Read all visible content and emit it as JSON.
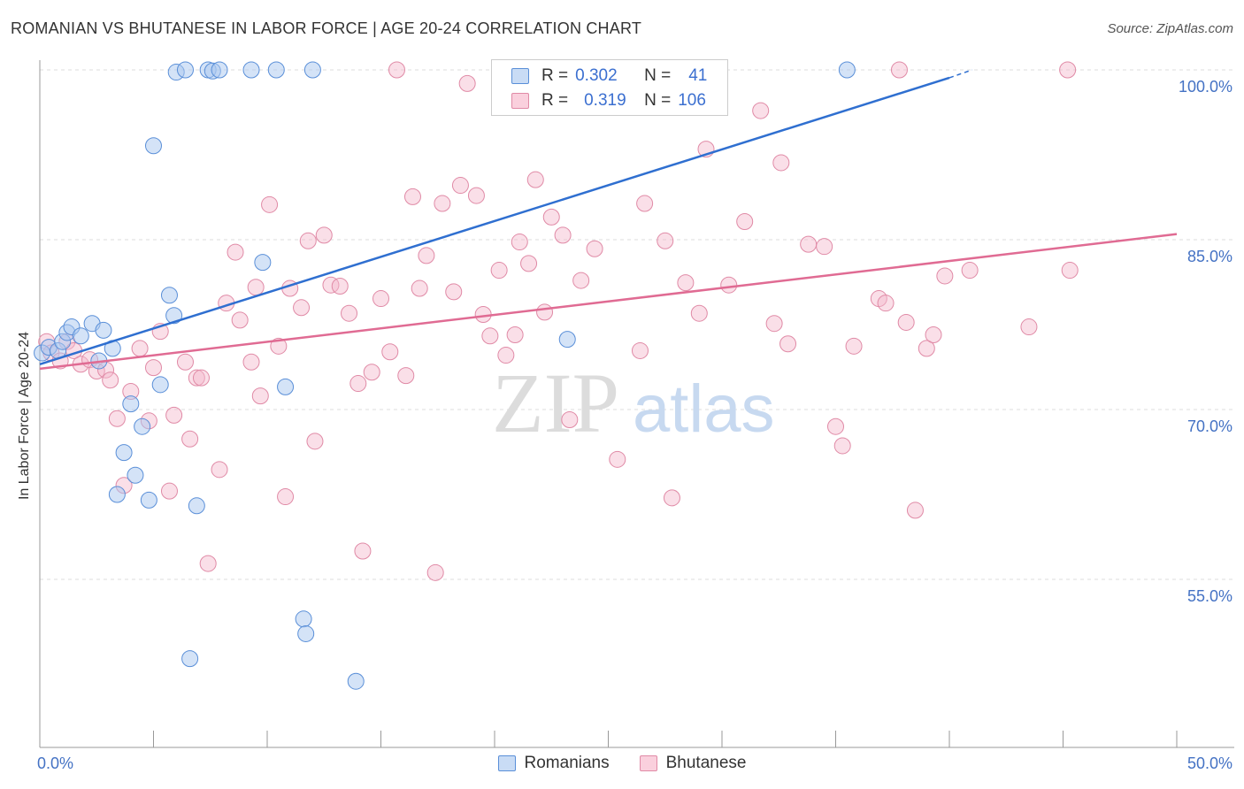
{
  "header": {
    "title": "ROMANIAN VS BHUTANESE IN LABOR FORCE | AGE 20-24 CORRELATION CHART",
    "source": "Source: ZipAtlas.com"
  },
  "legend": {
    "romanians": {
      "r_label": "R =",
      "r_value": "0.302",
      "n_label": "N =",
      "n_value": "41"
    },
    "bhutanese": {
      "r_label": "R =",
      "r_value": "0.319",
      "n_label": "N =",
      "n_value": "106"
    }
  },
  "watermark": {
    "zip": "ZIP",
    "atlas": "atlas"
  },
  "colors": {
    "romanians_fill": "#a9c8f0",
    "romanians_stroke": "#5a8fd8",
    "romanians_line": "#2f6fd0",
    "bhutanese_fill": "#f5b8cb",
    "bhutanese_stroke": "#e08aa6",
    "bhutanese_line": "#e06b93",
    "axis_label": "#4472c4"
  },
  "chart_data": {
    "type": "scatter",
    "title": "ROMANIAN VS BHUTANESE IN LABOR FORCE | AGE 20-24 CORRELATION CHART",
    "xlabel": "",
    "ylabel": "In Labor Force | Age 20-24",
    "xlim": [
      0,
      50
    ],
    "ylim": [
      39,
      103
    ],
    "x_tick_labels": [
      "0.0%",
      "50.0%"
    ],
    "y_ticks": [
      55,
      70,
      85,
      100
    ],
    "y_tick_labels": [
      "55.0%",
      "70.0%",
      "85.0%",
      "100.0%"
    ],
    "grid": true,
    "legend_position": "bottom-center",
    "series": [
      {
        "name": "Romanians",
        "trend": {
          "x": [
            0,
            40
          ],
          "y": [
            74.0,
            99.3
          ]
        },
        "points": [
          [
            0.1,
            75.0
          ],
          [
            0.4,
            75.5
          ],
          [
            0.8,
            75.2
          ],
          [
            1.0,
            76.0
          ],
          [
            1.2,
            76.8
          ],
          [
            1.4,
            77.3
          ],
          [
            1.8,
            76.5
          ],
          [
            2.3,
            77.6
          ],
          [
            2.8,
            77.0
          ],
          [
            2.6,
            74.3
          ],
          [
            3.2,
            75.4
          ],
          [
            3.4,
            62.5
          ],
          [
            3.7,
            66.2
          ],
          [
            4.0,
            70.5
          ],
          [
            4.2,
            64.2
          ],
          [
            4.5,
            68.5
          ],
          [
            4.8,
            62.0
          ],
          [
            5.0,
            93.3
          ],
          [
            5.3,
            72.2
          ],
          [
            5.7,
            80.1
          ],
          [
            5.9,
            78.3
          ],
          [
            6.0,
            99.8
          ],
          [
            6.4,
            100.0
          ],
          [
            6.6,
            48.0
          ],
          [
            6.9,
            61.5
          ],
          [
            7.4,
            100.0
          ],
          [
            7.6,
            99.9
          ],
          [
            7.9,
            100.0
          ],
          [
            9.3,
            100.0
          ],
          [
            9.8,
            83.0
          ],
          [
            10.4,
            100.0
          ],
          [
            10.8,
            72.0
          ],
          [
            11.6,
            51.5
          ],
          [
            11.7,
            50.2
          ],
          [
            12.0,
            100.0
          ],
          [
            13.9,
            46.0
          ],
          [
            23.2,
            76.2
          ],
          [
            27.9,
            100.0
          ],
          [
            35.5,
            100.0
          ]
        ]
      },
      {
        "name": "Bhutanese",
        "trend": {
          "x": [
            0,
            50
          ],
          "y": [
            73.6,
            85.5
          ]
        },
        "points": [
          [
            0.3,
            76.0
          ],
          [
            0.5,
            75.0
          ],
          [
            0.9,
            74.3
          ],
          [
            1.2,
            76.0
          ],
          [
            1.5,
            75.2
          ],
          [
            1.8,
            74.0
          ],
          [
            2.2,
            74.4
          ],
          [
            2.5,
            73.4
          ],
          [
            2.9,
            73.5
          ],
          [
            3.1,
            72.6
          ],
          [
            3.4,
            69.2
          ],
          [
            3.7,
            63.3
          ],
          [
            4.0,
            71.6
          ],
          [
            4.4,
            75.4
          ],
          [
            4.8,
            69.0
          ],
          [
            5.0,
            73.7
          ],
          [
            5.3,
            76.9
          ],
          [
            5.7,
            62.8
          ],
          [
            5.9,
            69.5
          ],
          [
            6.4,
            74.2
          ],
          [
            6.6,
            67.4
          ],
          [
            6.9,
            72.8
          ],
          [
            7.1,
            72.8
          ],
          [
            7.4,
            56.4
          ],
          [
            7.9,
            64.7
          ],
          [
            8.2,
            79.4
          ],
          [
            8.6,
            83.9
          ],
          [
            8.8,
            77.9
          ],
          [
            9.3,
            74.2
          ],
          [
            9.5,
            80.8
          ],
          [
            9.7,
            71.2
          ],
          [
            10.1,
            88.1
          ],
          [
            10.5,
            75.6
          ],
          [
            10.8,
            62.3
          ],
          [
            11.0,
            80.7
          ],
          [
            11.5,
            79.0
          ],
          [
            11.8,
            84.9
          ],
          [
            12.1,
            67.2
          ],
          [
            12.5,
            85.4
          ],
          [
            12.8,
            81.0
          ],
          [
            13.2,
            80.9
          ],
          [
            13.6,
            78.5
          ],
          [
            14.0,
            72.3
          ],
          [
            14.2,
            57.5
          ],
          [
            14.6,
            73.3
          ],
          [
            15.0,
            79.8
          ],
          [
            15.4,
            75.1
          ],
          [
            15.7,
            100.0
          ],
          [
            16.1,
            73.0
          ],
          [
            16.4,
            88.8
          ],
          [
            16.7,
            80.7
          ],
          [
            17.0,
            83.6
          ],
          [
            17.4,
            55.6
          ],
          [
            17.7,
            88.2
          ],
          [
            18.2,
            80.4
          ],
          [
            18.5,
            89.8
          ],
          [
            18.8,
            98.8
          ],
          [
            19.2,
            88.9
          ],
          [
            19.5,
            78.4
          ],
          [
            19.8,
            76.5
          ],
          [
            20.2,
            82.3
          ],
          [
            20.5,
            74.8
          ],
          [
            20.9,
            76.6
          ],
          [
            21.1,
            84.8
          ],
          [
            21.5,
            82.9
          ],
          [
            21.8,
            90.3
          ],
          [
            22.2,
            78.6
          ],
          [
            22.5,
            87.0
          ],
          [
            23.0,
            85.4
          ],
          [
            23.3,
            69.1
          ],
          [
            23.8,
            81.4
          ],
          [
            24.4,
            84.2
          ],
          [
            25.4,
            65.6
          ],
          [
            26.4,
            75.2
          ],
          [
            26.6,
            88.2
          ],
          [
            27.5,
            84.9
          ],
          [
            27.8,
            62.2
          ],
          [
            28.4,
            81.2
          ],
          [
            29.0,
            78.5
          ],
          [
            29.3,
            93.0
          ],
          [
            30.3,
            81.0
          ],
          [
            31.0,
            86.6
          ],
          [
            31.7,
            96.4
          ],
          [
            32.3,
            77.6
          ],
          [
            32.6,
            91.8
          ],
          [
            32.9,
            75.8
          ],
          [
            33.8,
            84.6
          ],
          [
            34.5,
            84.4
          ],
          [
            35.0,
            68.5
          ],
          [
            35.3,
            66.8
          ],
          [
            35.8,
            75.6
          ],
          [
            36.9,
            79.8
          ],
          [
            37.2,
            79.4
          ],
          [
            37.8,
            100.0
          ],
          [
            38.1,
            77.7
          ],
          [
            38.5,
            61.1
          ],
          [
            39.0,
            75.4
          ],
          [
            39.3,
            76.6
          ],
          [
            39.8,
            81.8
          ],
          [
            40.9,
            82.3
          ],
          [
            43.5,
            77.3
          ],
          [
            45.2,
            100.0
          ],
          [
            45.3,
            82.3
          ]
        ]
      }
    ]
  },
  "bottom_legend": {
    "romanians_label": "Romanians",
    "bhutanese_label": "Bhutanese"
  }
}
